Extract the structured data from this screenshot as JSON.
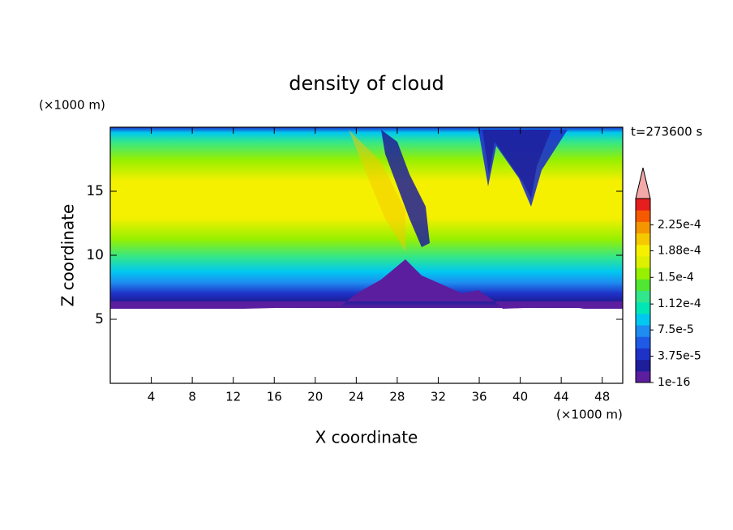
{
  "chart_data": {
    "type": "contour",
    "title": "density of cloud",
    "x_label": "X coordinate",
    "y_label": "Z coordinate",
    "x_unit": "(×1000 m)",
    "y_unit": "(×1000 m)",
    "annotation": "t=273600 s",
    "xlim": [
      0,
      50
    ],
    "xticks": [
      4,
      8,
      12,
      16,
      20,
      24,
      28,
      32,
      36,
      40,
      44,
      48
    ],
    "ylim": [
      0,
      20
    ],
    "yticks": [
      5,
      10,
      15
    ],
    "colorbar": {
      "lim": [
        0,
        0.0002625
      ],
      "colors": [
        "#5b1e9e",
        "#1e1e9b",
        "#1e32c8",
        "#1e5ae6",
        "#1e8cf0",
        "#00c8f0",
        "#00e6b4",
        "#32e68c",
        "#50e632",
        "#96f000",
        "#dcf000",
        "#f5f000",
        "#f5c800",
        "#f59600",
        "#f55a00",
        "#e61e1e"
      ],
      "extend_color": "#f4a8a8",
      "ticks": [
        {
          "value": 1e-16,
          "label": "1e-16"
        },
        {
          "value": 3.75e-05,
          "label": "3.75e-5"
        },
        {
          "value": 7.5e-05,
          "label": "7.5e-5"
        },
        {
          "value": 0.000112,
          "label": "1.12e-4"
        },
        {
          "value": 0.00015,
          "label": "1.5e-4"
        },
        {
          "value": 0.000188,
          "label": "1.88e-4"
        },
        {
          "value": 0.000225,
          "label": "2.25e-4"
        }
      ]
    }
  }
}
